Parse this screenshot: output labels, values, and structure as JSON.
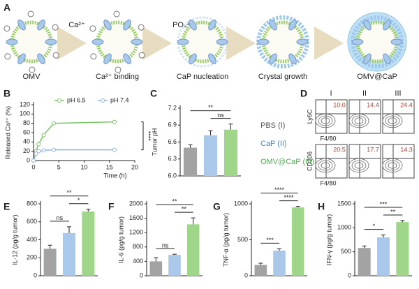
{
  "diagram": {
    "panel_label": "A",
    "ion1": "Ca²⁺",
    "ion2": "PO₄³⁻",
    "stages": [
      "OMV",
      "Ca²⁺ binding",
      "CaP nucleation",
      "Crystal growth",
      "OMV@CaP"
    ]
  },
  "flow_cytometry": {
    "panel_label": "D",
    "columns": [
      "I",
      "II",
      "III"
    ],
    "rows": [
      {
        "y_label": "Ly6C",
        "x_label": "F4/80",
        "values": [
          10.0,
          14.4,
          24.4
        ],
        "value_labels": [
          "10.0",
          "14.4",
          "24.4"
        ]
      },
      {
        "y_label": "CD206",
        "x_label": "F4/80",
        "values": [
          20.5,
          17.7,
          14.3
        ]
      }
    ]
  },
  "chart_data": [
    {
      "type": "line",
      "panel_label": "B",
      "y_label": "Released Ca²⁺ (%)",
      "x_label": "Time (h)",
      "x": [
        0,
        0.5,
        1,
        2,
        4,
        16
      ],
      "series": [
        {
          "name": "pH 6.5",
          "color": "#7cc46a",
          "values": [
            0,
            20,
            35,
            55,
            80,
            83
          ]
        },
        {
          "name": "pH 7.4",
          "color": "#8fb4e0",
          "values": [
            0,
            15,
            20,
            22,
            23,
            23
          ]
        }
      ],
      "xlim": [
        0,
        20
      ],
      "xticks": [
        0,
        5,
        10,
        15,
        20
      ],
      "ylim": [
        0,
        120
      ],
      "yticks": [
        0,
        20,
        40,
        60,
        80,
        100,
        120
      ],
      "annotations": [
        "****"
      ]
    },
    {
      "type": "bar",
      "panel_label": "C",
      "y_label": "Tumor pH",
      "categories": [
        "PBS (I)",
        "CaP (II)",
        "OMV@CaP (III)"
      ],
      "category_colors": [
        "#555555",
        "#4a86c8",
        "#4caf50"
      ],
      "values": [
        6.5,
        6.72,
        6.82
      ],
      "errors": [
        0.05,
        0.08,
        0.1
      ],
      "colors": [
        "#a3a3a3",
        "#a9c8ea",
        "#9fd68a"
      ],
      "ylim": [
        6,
        7.2
      ],
      "yticks": [
        {
          "value": 6,
          "label": "6.0"
        },
        6.3,
        6.6,
        6.9,
        7.2
      ],
      "annotations": [
        "**",
        "ns"
      ]
    },
    {
      "type": "bar",
      "panel_label": "E",
      "y_label": "IL-12 (pg/g tumor)",
      "values": [
        300,
        475,
        715
      ],
      "errors": [
        40,
        70,
        25
      ],
      "colors": [
        "#a3a3a3",
        "#a9c8ea",
        "#9fd68a"
      ],
      "ylim": [
        0,
        800
      ],
      "yticks": [
        0,
        200,
        400,
        600,
        800
      ],
      "annotations": [
        "**",
        "ns",
        "*"
      ]
    },
    {
      "type": "bar",
      "panel_label": "F",
      "y_label": "IL-6 (pg/g tumor)",
      "values": [
        400,
        580,
        1430
      ],
      "errors": [
        100,
        20,
        180
      ],
      "colors": [
        "#a3a3a3",
        "#a9c8ea",
        "#9fd68a"
      ],
      "ylim": [
        0,
        2000
      ],
      "yticks": [
        0,
        400,
        800,
        1200,
        1600,
        2000
      ],
      "annotations": [
        "**",
        "ns",
        "**"
      ]
    },
    {
      "type": "bar",
      "panel_label": "G",
      "y_label": "TNF-α (pg/g tumor)",
      "values": [
        150,
        350,
        950
      ],
      "errors": [
        25,
        25,
        15
      ],
      "colors": [
        "#a3a3a3",
        "#a9c8ea",
        "#9fd68a"
      ],
      "ylim": [
        0,
        1000
      ],
      "yticks": [
        0,
        500,
        1000
      ],
      "annotations": [
        "****",
        "***",
        "****"
      ]
    },
    {
      "type": "bar",
      "panel_label": "H",
      "y_label": "IFN-γ (pg/g tumor)",
      "values": [
        580,
        800,
        1120
      ],
      "errors": [
        40,
        50,
        30
      ],
      "colors": [
        "#a3a3a3",
        "#a9c8ea",
        "#9fd68a"
      ],
      "ylim": [
        0,
        1500
      ],
      "yticks": [
        0,
        500,
        1000,
        1500
      ],
      "annotations": [
        "***",
        "*",
        "**"
      ]
    }
  ]
}
